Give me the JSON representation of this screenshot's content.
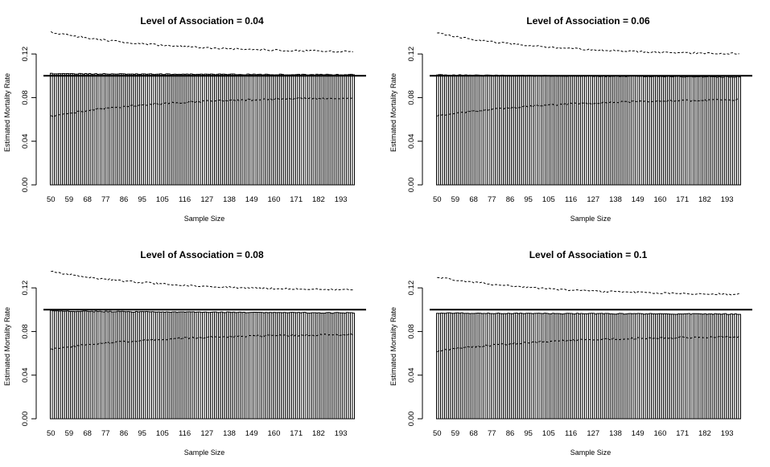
{
  "chart_data": [
    {
      "type": "bar",
      "title": "Level of Association = 0.04",
      "xlabel": "Sample Size",
      "ylabel": "Estimated Mortality Rate",
      "x_range": [
        50,
        200
      ],
      "x_tick_labels": [
        "50",
        "59",
        "68",
        "77",
        "86",
        "95",
        "105",
        "116",
        "127",
        "138",
        "149",
        "160",
        "171",
        "182",
        "193"
      ],
      "y_ticks": [
        "0.00",
        "0.04",
        "0.08",
        "0.12"
      ],
      "ylim": [
        0,
        0.14
      ],
      "reference_line": 0.1,
      "bar_estimate": [
        0.102,
        0.101
      ],
      "upper_ci": [
        0.14,
        0.121
      ],
      "lower_ci": [
        0.063,
        0.081
      ]
    },
    {
      "type": "bar",
      "title": "Level of Association = 0.06",
      "xlabel": "Sample Size",
      "ylabel": "Estimated Mortality Rate",
      "x_range": [
        50,
        200
      ],
      "x_tick_labels": [
        "50",
        "59",
        "68",
        "77",
        "86",
        "95",
        "105",
        "116",
        "127",
        "138",
        "149",
        "160",
        "171",
        "182",
        "193"
      ],
      "y_ticks": [
        "0.00",
        "0.04",
        "0.08",
        "0.12"
      ],
      "ylim": [
        0,
        0.14
      ],
      "reference_line": 0.1,
      "bar_estimate": [
        0.101,
        0.099
      ],
      "upper_ci": [
        0.139,
        0.119
      ],
      "lower_ci": [
        0.063,
        0.079
      ]
    },
    {
      "type": "bar",
      "title": "Level of Association = 0.08",
      "xlabel": "Sample Size",
      "ylabel": "Estimated Mortality Rate",
      "x_range": [
        50,
        200
      ],
      "x_tick_labels": [
        "50",
        "59",
        "68",
        "77",
        "86",
        "95",
        "105",
        "116",
        "127",
        "138",
        "149",
        "160",
        "171",
        "182",
        "193"
      ],
      "y_ticks": [
        "0.00",
        "0.04",
        "0.08",
        "0.12"
      ],
      "ylim": [
        0,
        0.14
      ],
      "reference_line": 0.1,
      "bar_estimate": [
        0.099,
        0.097
      ],
      "upper_ci": [
        0.135,
        0.117
      ],
      "lower_ci": [
        0.064,
        0.078
      ]
    },
    {
      "type": "bar",
      "title": "Level of Association = 0.1",
      "xlabel": "Sample Size",
      "ylabel": "Estimated Mortality Rate",
      "x_range": [
        50,
        200
      ],
      "x_tick_labels": [
        "50",
        "59",
        "68",
        "77",
        "86",
        "95",
        "105",
        "116",
        "127",
        "138",
        "149",
        "160",
        "171",
        "182",
        "193"
      ],
      "y_ticks": [
        "0.00",
        "0.04",
        "0.08",
        "0.12"
      ],
      "ylim": [
        0,
        0.14
      ],
      "reference_line": 0.1,
      "bar_estimate": [
        0.097,
        0.096
      ],
      "upper_ci": [
        0.13,
        0.113
      ],
      "lower_ci": [
        0.062,
        0.076
      ]
    }
  ]
}
